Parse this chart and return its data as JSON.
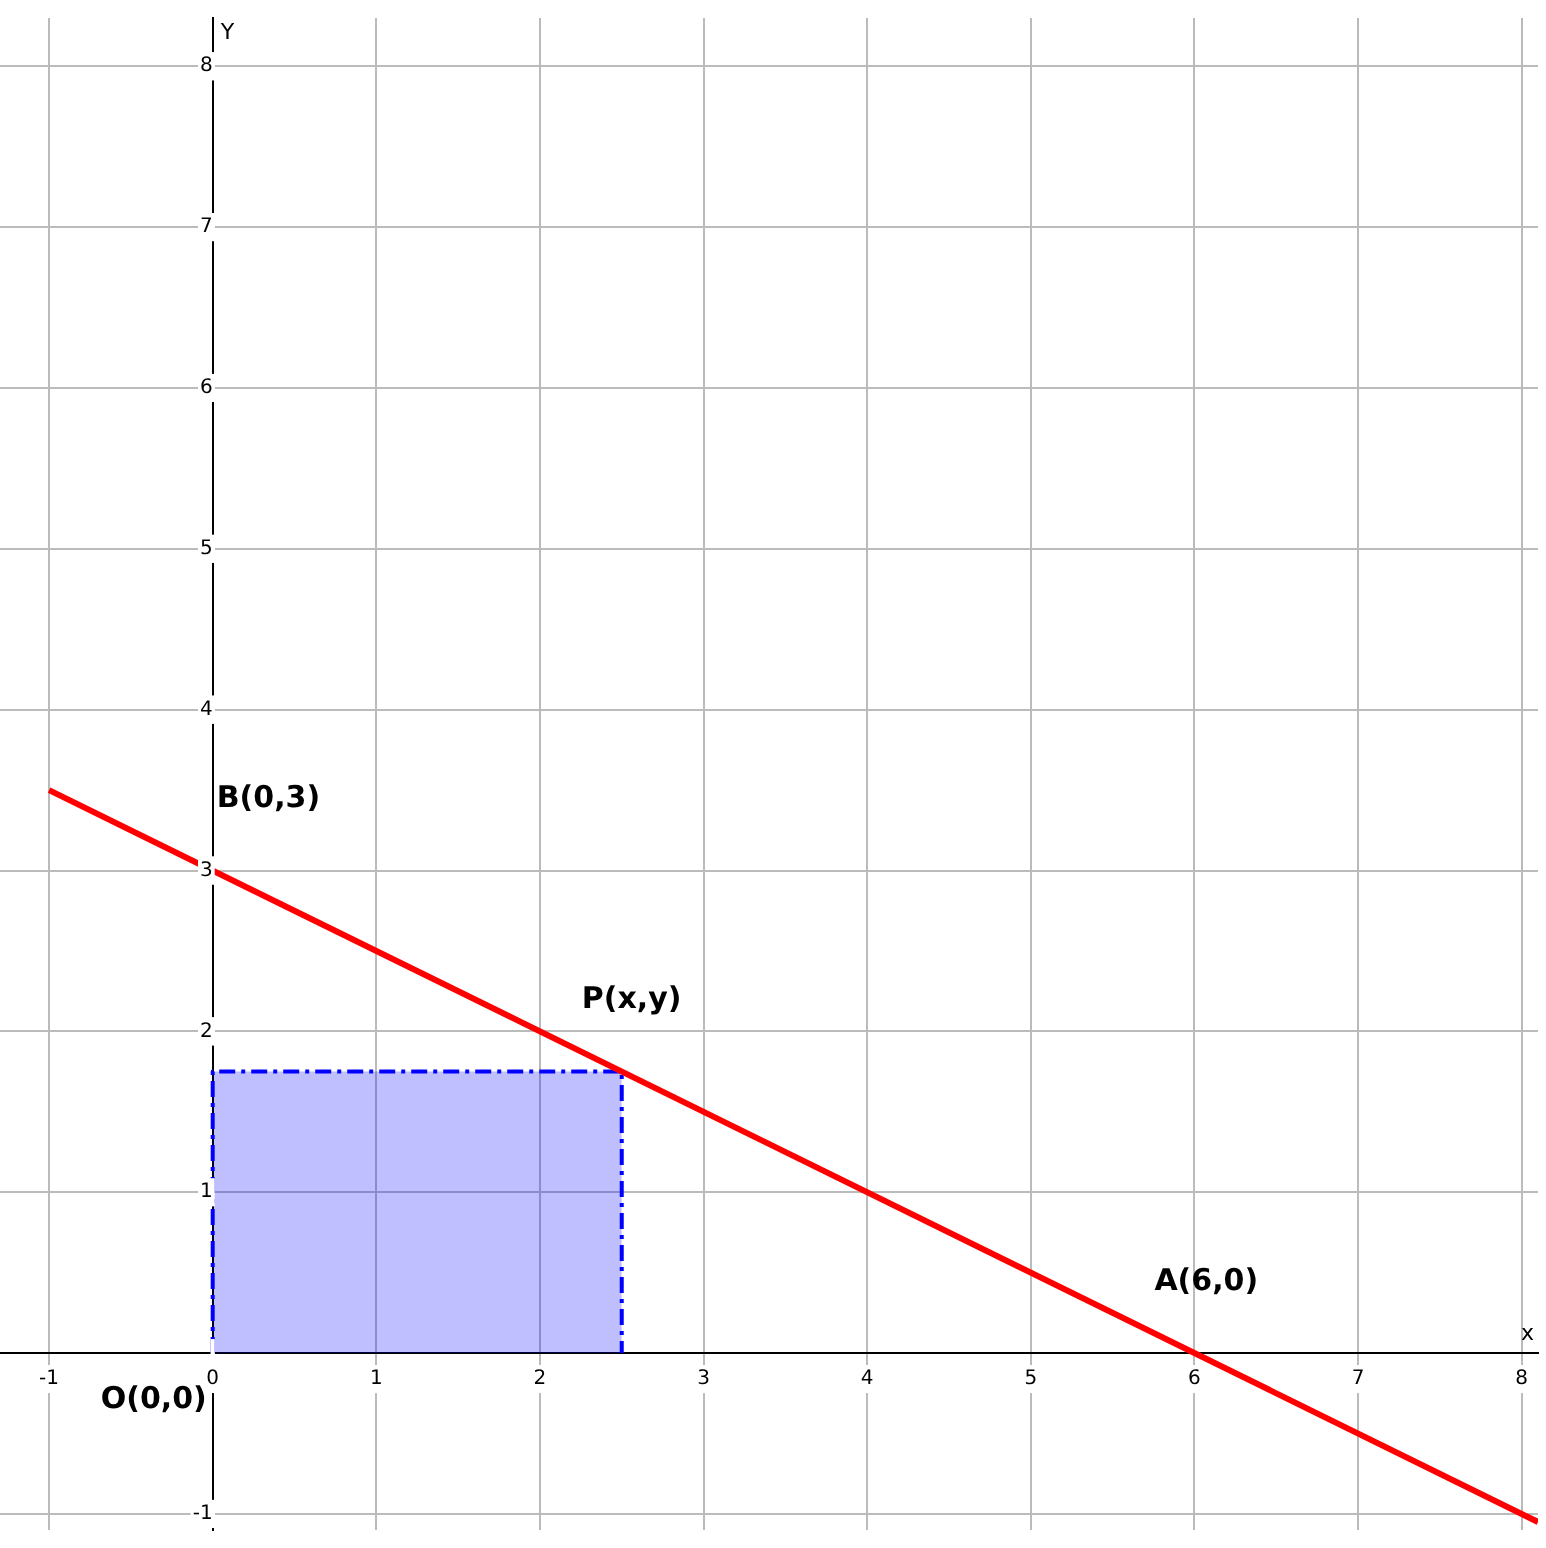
{
  "chart_data": {
    "type": "line",
    "xlabel": "x",
    "ylabel": "Y",
    "series": [
      {
        "type": "line",
        "color": "#ff0000",
        "x": [
          -1,
          8.1
        ],
        "values": [
          3.5,
          -1.05
        ]
      },
      {
        "type": "area",
        "color": "#0000ff",
        "x": [
          0,
          0,
          2.5,
          2.5
        ],
        "values": [
          0,
          1.75,
          1.75,
          0
        ],
        "line_style": "dashed"
      }
    ],
    "xlim": [
      -1.3,
      8.1
    ],
    "ylim": [
      -1.1,
      8.3
    ],
    "xticks": [
      -1,
      0,
      1,
      2,
      3,
      4,
      5,
      6,
      7,
      8
    ],
    "yticks": [
      -1,
      {
        "value": 0,
        "label": null
      },
      1,
      2,
      3,
      4,
      5,
      6,
      7,
      8
    ],
    "grid": true,
    "marker": "none",
    "annotations": [
      {
        "text": "B(0,3)",
        "x": 0,
        "y": 3
      },
      {
        "text": "P(x,y)",
        "x": 2.5,
        "y": 1.75
      },
      {
        "text": "A(6,0)",
        "x": 6,
        "y": 0
      },
      {
        "text": "O(0,0)",
        "x": 0,
        "y": 0
      }
    ]
  }
}
